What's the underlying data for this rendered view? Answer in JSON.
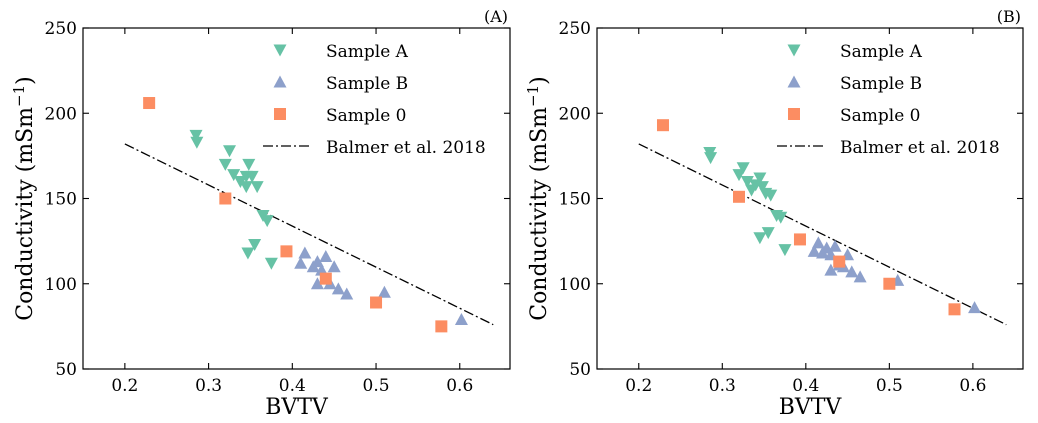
{
  "chart_data": [
    {
      "type": "scatter",
      "panel_label": "(A)",
      "xlabel": "BVTV",
      "ylabel": "Conductivity (mSm",
      "ylabel_sup": "−1",
      "ylabel_end": ")",
      "xlim": [
        0.15,
        0.66
      ],
      "ylim": [
        50,
        250
      ],
      "xticks": [
        "0.2",
        "0.3",
        "0.4",
        "0.5",
        "0.6"
      ],
      "yticks": [
        "50",
        "100",
        "150",
        "200",
        "250"
      ],
      "legend_position": "top-right",
      "grid": false,
      "series": [
        {
          "name": "Sample A",
          "marker": "triangle-down",
          "color": "#66c2a5",
          "points": [
            [
              0.285,
              187
            ],
            [
              0.286,
              183
            ],
            [
              0.32,
              170
            ],
            [
              0.325,
              178
            ],
            [
              0.33,
              164
            ],
            [
              0.338,
              160
            ],
            [
              0.345,
              163
            ],
            [
              0.348,
              170
            ],
            [
              0.352,
              163
            ],
            [
              0.358,
              157
            ],
            [
              0.345,
              157
            ],
            [
              0.365,
              140
            ],
            [
              0.37,
              137
            ],
            [
              0.355,
              123
            ],
            [
              0.347,
              118
            ],
            [
              0.375,
              112
            ]
          ]
        },
        {
          "name": "Sample B",
          "marker": "triangle-up",
          "color": "#8da0cb",
          "points": [
            [
              0.41,
              112
            ],
            [
              0.415,
              118
            ],
            [
              0.425,
              110
            ],
            [
              0.43,
              113
            ],
            [
              0.435,
              108
            ],
            [
              0.44,
              116
            ],
            [
              0.43,
              100
            ],
            [
              0.44,
              103
            ],
            [
              0.445,
              100
            ],
            [
              0.45,
              110
            ],
            [
              0.455,
              97
            ],
            [
              0.465,
              94
            ],
            [
              0.51,
              95
            ],
            [
              0.602,
              79
            ]
          ]
        },
        {
          "name": "Sample 0",
          "marker": "square",
          "color": "#fc8d62",
          "points": [
            [
              0.229,
              206
            ],
            [
              0.32,
              150
            ],
            [
              0.393,
              119
            ],
            [
              0.44,
              103
            ],
            [
              0.5,
              89
            ],
            [
              0.578,
              75
            ]
          ]
        }
      ],
      "reference_line": {
        "name": "Balmer et al. 2018",
        "style": "dash-dot",
        "points": [
          [
            0.2,
            182
          ],
          [
            0.64,
            76
          ]
        ]
      }
    },
    {
      "type": "scatter",
      "panel_label": "(B)",
      "xlabel": "BVTV",
      "ylabel": "Conductivity (mSm",
      "ylabel_sup": "−1",
      "ylabel_end": ")",
      "xlim": [
        0.15,
        0.66
      ],
      "ylim": [
        50,
        250
      ],
      "xticks": [
        "0.2",
        "0.3",
        "0.4",
        "0.5",
        "0.6"
      ],
      "yticks": [
        "50",
        "100",
        "150",
        "200",
        "250"
      ],
      "legend_position": "top-right",
      "grid": false,
      "series": [
        {
          "name": "Sample A",
          "marker": "triangle-down",
          "color": "#66c2a5",
          "points": [
            [
              0.285,
              177
            ],
            [
              0.286,
              174
            ],
            [
              0.32,
              164
            ],
            [
              0.325,
              168
            ],
            [
              0.33,
              160
            ],
            [
              0.335,
              155
            ],
            [
              0.34,
              158
            ],
            [
              0.345,
              162
            ],
            [
              0.348,
              157
            ],
            [
              0.352,
              153
            ],
            [
              0.358,
              152
            ],
            [
              0.365,
              140
            ],
            [
              0.37,
              139
            ],
            [
              0.355,
              130
            ],
            [
              0.345,
              127
            ],
            [
              0.375,
              120
            ]
          ]
        },
        {
          "name": "Sample B",
          "marker": "triangle-up",
          "color": "#8da0cb",
          "points": [
            [
              0.41,
              119
            ],
            [
              0.415,
              124
            ],
            [
              0.42,
              118
            ],
            [
              0.425,
              121
            ],
            [
              0.43,
              117
            ],
            [
              0.435,
              122
            ],
            [
              0.43,
              108
            ],
            [
              0.44,
              111
            ],
            [
              0.445,
              110
            ],
            [
              0.45,
              117
            ],
            [
              0.455,
              107
            ],
            [
              0.465,
              104
            ],
            [
              0.51,
              102
            ],
            [
              0.602,
              86
            ]
          ]
        },
        {
          "name": "Sample 0",
          "marker": "square",
          "color": "#fc8d62",
          "points": [
            [
              0.229,
              193
            ],
            [
              0.32,
              151
            ],
            [
              0.393,
              126
            ],
            [
              0.44,
              113
            ],
            [
              0.5,
              100
            ],
            [
              0.578,
              85
            ]
          ]
        }
      ],
      "reference_line": {
        "name": "Balmer et al. 2018",
        "style": "dash-dot",
        "points": [
          [
            0.2,
            182
          ],
          [
            0.64,
            76
          ]
        ]
      }
    }
  ]
}
